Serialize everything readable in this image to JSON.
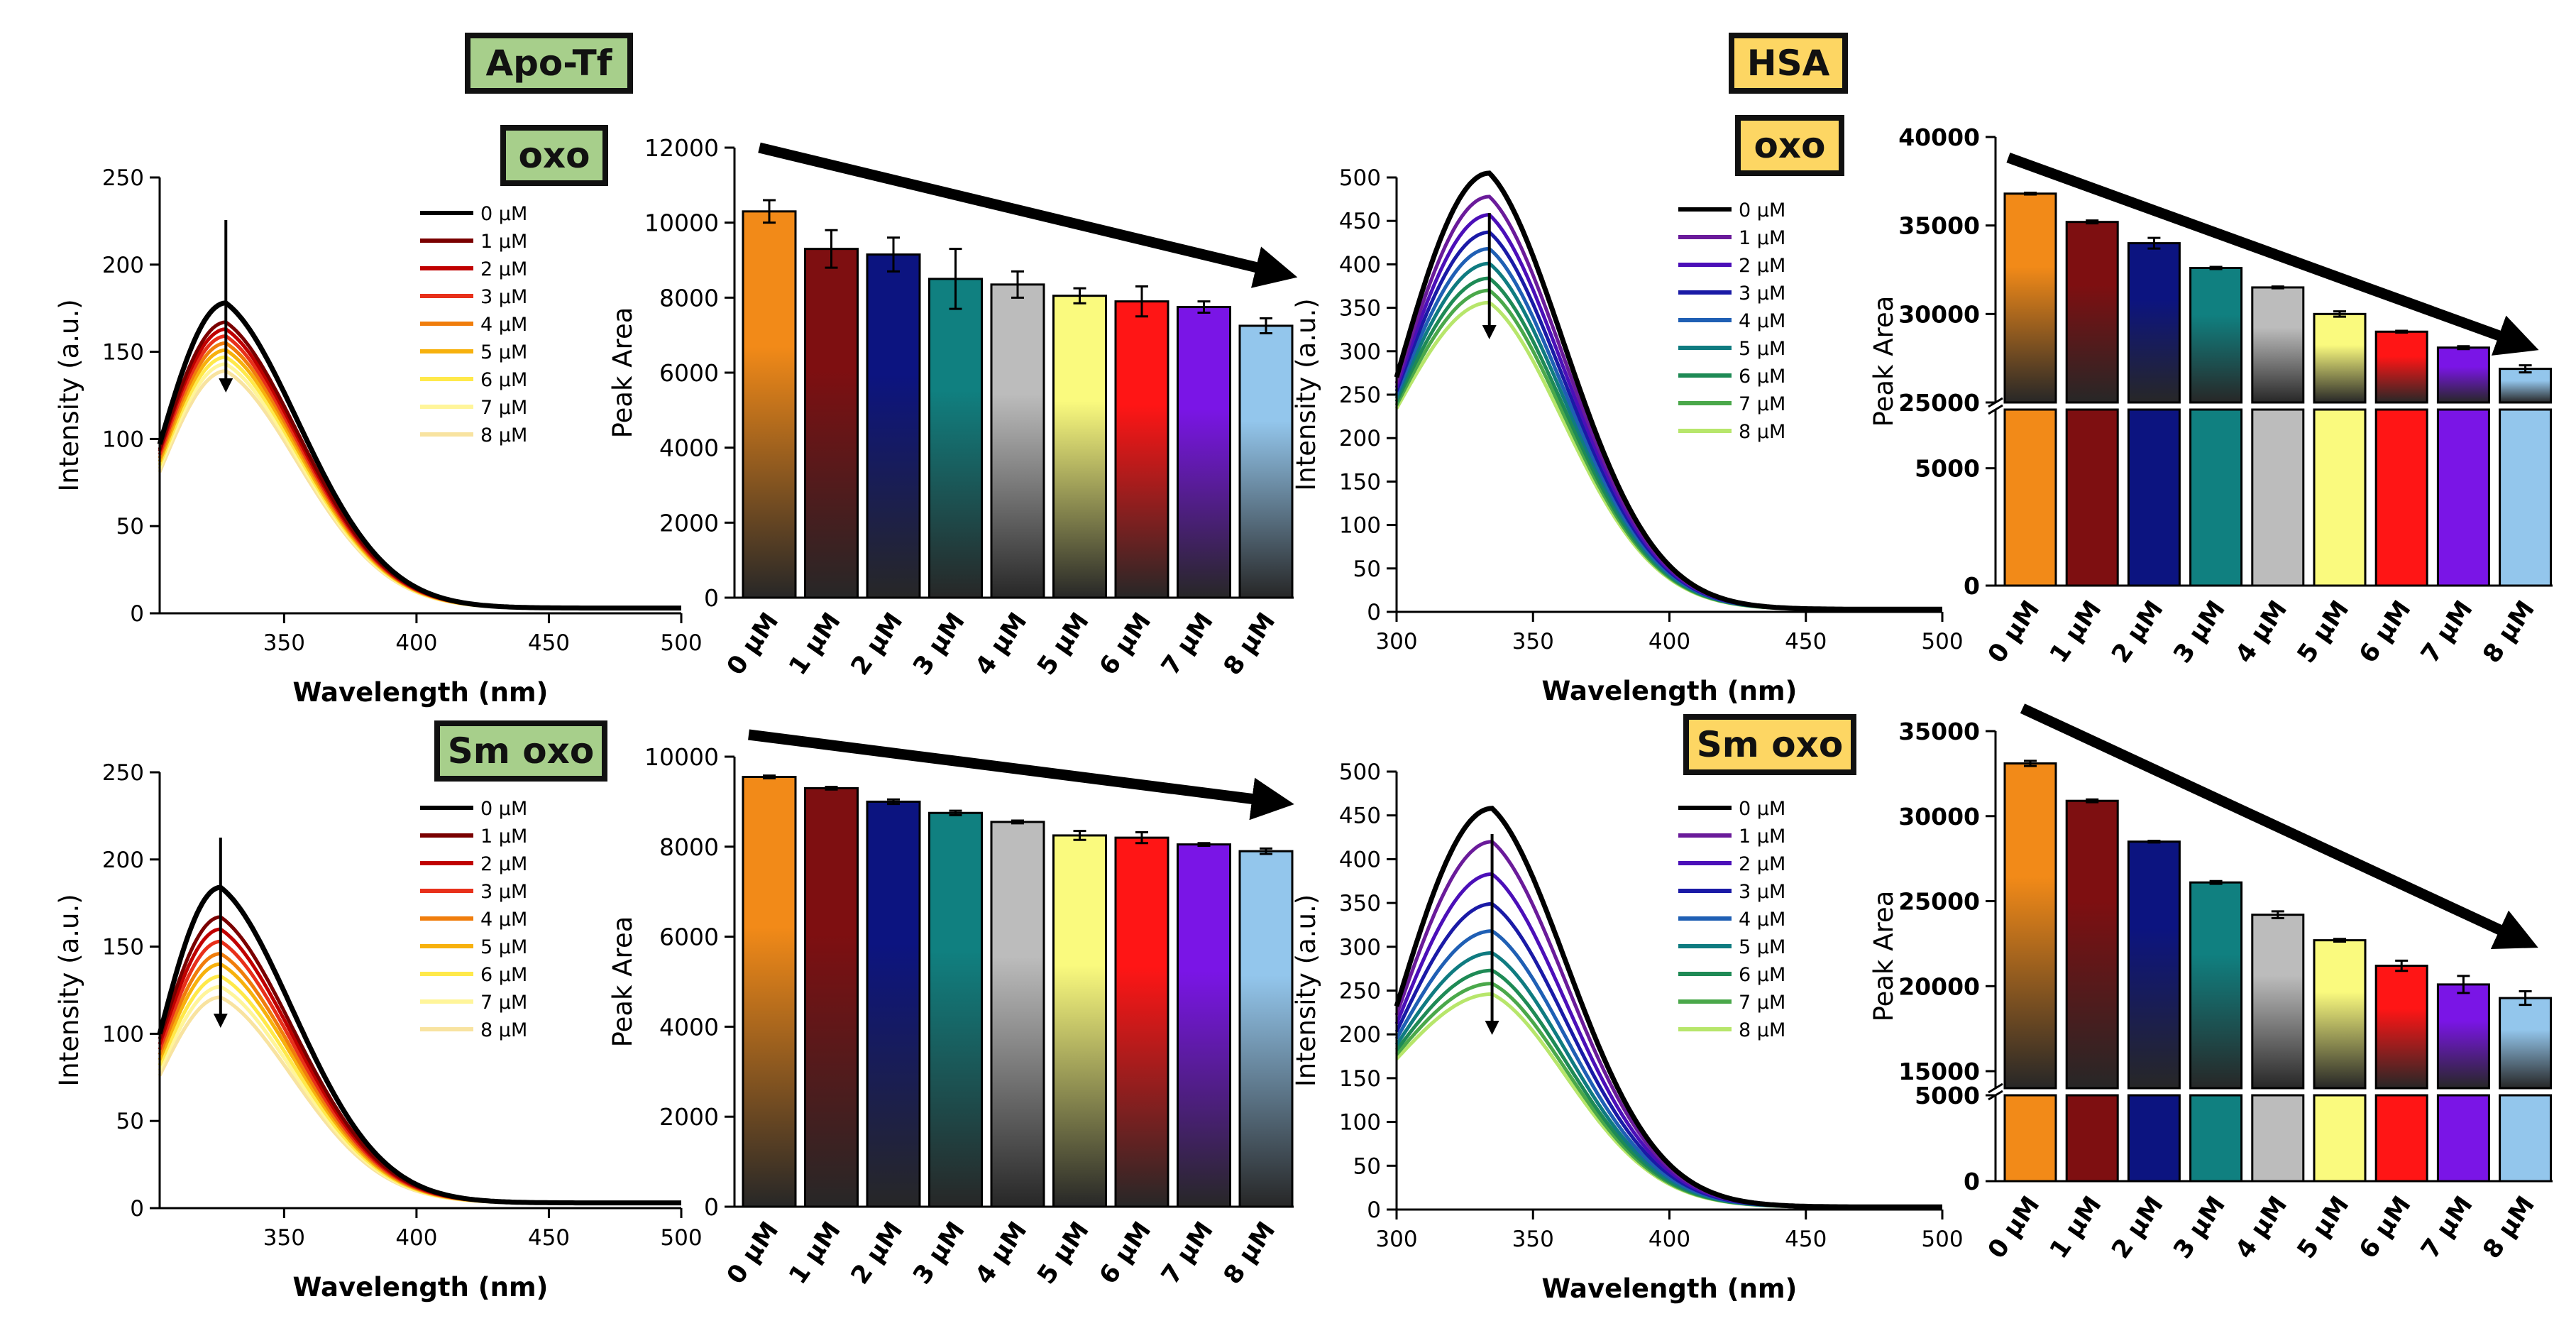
{
  "labels": {
    "apo_tf": "Apo-Tf",
    "oxo_left": "oxo",
    "sm_oxo_left": "Sm oxo",
    "hsa": "HSA",
    "oxo_right": "oxo",
    "sm_oxo_right": "Sm oxo"
  },
  "colors": {
    "apo_label_bg": "#a7cf8b",
    "hsa_label_bg": "#fdd663"
  },
  "chart_data": [
    {
      "id": "apo-tf-oxo-spectra",
      "type": "line",
      "xlabel": "Wavelength (nm)",
      "ylabel": "Intensity (a.u.)",
      "xlim": [
        303,
        500
      ],
      "ylim": [
        0,
        250
      ],
      "xticks": [
        350,
        400,
        450,
        500
      ],
      "yticks": [
        0,
        50,
        100,
        150,
        200,
        250
      ],
      "legend_position": "top-right",
      "peak_x": 328,
      "series": [
        {
          "name": "0 μM",
          "peak": 178,
          "start": 97,
          "color": "#000000"
        },
        {
          "name": "1 μM",
          "peak": 167,
          "start": 94,
          "color": "#7a0000"
        },
        {
          "name": "2 μM",
          "peak": 163,
          "start": 93,
          "color": "#c00000"
        },
        {
          "name": "3 μM",
          "peak": 159,
          "start": 91,
          "color": "#e8301a"
        },
        {
          "name": "4 μM",
          "peak": 155,
          "start": 89,
          "color": "#f07d0c"
        },
        {
          "name": "5 μM",
          "peak": 151,
          "start": 87,
          "color": "#f7b10d"
        },
        {
          "name": "6 μM",
          "peak": 147,
          "start": 85,
          "color": "#ffe94a"
        },
        {
          "name": "7 μM",
          "peak": 143,
          "start": 83,
          "color": "#fff59a"
        },
        {
          "name": "8 μM",
          "peak": 139,
          "start": 81,
          "color": "#f8e3a0"
        }
      ]
    },
    {
      "id": "apo-tf-oxo-bars",
      "type": "bar",
      "ylabel": "Peak Area",
      "categories": [
        "0 μM",
        "1 μM",
        "2 μM",
        "3 μM",
        "4 μM",
        "5 μM",
        "6 μM",
        "7 μM",
        "8 μM"
      ],
      "values": [
        10300,
        9300,
        9150,
        8500,
        8350,
        8050,
        7900,
        7750,
        7250
      ],
      "errors": [
        300,
        500,
        450,
        800,
        350,
        200,
        400,
        150,
        200
      ],
      "ylim": [
        0,
        12000
      ],
      "yticks": [
        0,
        2000,
        4000,
        6000,
        8000,
        10000,
        12000
      ],
      "trend": "decreasing"
    },
    {
      "id": "apo-tf-sm-oxo-spectra",
      "type": "line",
      "xlabel": "Wavelength (nm)",
      "ylabel": "Intensity (a.u.)",
      "xlim": [
        303,
        500
      ],
      "ylim": [
        0,
        250
      ],
      "xticks": [
        350,
        400,
        450,
        500
      ],
      "yticks": [
        0,
        50,
        100,
        150,
        200,
        250
      ],
      "legend_position": "top-right",
      "peak_x": 326,
      "series": [
        {
          "name": "0 μM",
          "peak": 184,
          "start": 100,
          "color": "#000000"
        },
        {
          "name": "1 μM",
          "peak": 167,
          "start": 97,
          "color": "#7a0000"
        },
        {
          "name": "2 μM",
          "peak": 160,
          "start": 94,
          "color": "#c00000"
        },
        {
          "name": "3 μM",
          "peak": 153,
          "start": 91,
          "color": "#e8301a"
        },
        {
          "name": "4 μM",
          "peak": 146,
          "start": 88,
          "color": "#f07d0c"
        },
        {
          "name": "5 μM",
          "peak": 140,
          "start": 85,
          "color": "#f7b10d"
        },
        {
          "name": "6 μM",
          "peak": 133,
          "start": 82,
          "color": "#ffe94a"
        },
        {
          "name": "7 μM",
          "peak": 127,
          "start": 79,
          "color": "#fff59a"
        },
        {
          "name": "8 μM",
          "peak": 121,
          "start": 76,
          "color": "#f8e3a0"
        }
      ]
    },
    {
      "id": "apo-tf-sm-oxo-bars",
      "type": "bar",
      "ylabel": "Peak Area",
      "categories": [
        "0 μM",
        "1 μM",
        "2 μM",
        "3 μM",
        "4 μM",
        "5 μM",
        "6 μM",
        "7 μM",
        "8 μM"
      ],
      "values": [
        9550,
        9300,
        9000,
        8750,
        8550,
        8250,
        8200,
        8050,
        7900
      ],
      "errors": [
        30,
        30,
        50,
        50,
        30,
        100,
        120,
        30,
        60
      ],
      "ylim": [
        0,
        10000
      ],
      "yticks": [
        0,
        2000,
        4000,
        6000,
        8000,
        10000
      ],
      "trend": "decreasing"
    },
    {
      "id": "hsa-oxo-spectra",
      "type": "line",
      "xlabel": "Wavelength (nm)",
      "ylabel": "Intensity (a.u.)",
      "xlim": [
        300,
        500
      ],
      "ylim": [
        0,
        500
      ],
      "xticks": [
        300,
        350,
        400,
        450,
        500
      ],
      "yticks": [
        0,
        50,
        100,
        150,
        200,
        250,
        300,
        350,
        400,
        450,
        500
      ],
      "legend_position": "top-right",
      "peak_x": 334,
      "series": [
        {
          "name": "0 μM",
          "peak": 505,
          "start": 270,
          "color": "#000000"
        },
        {
          "name": "1 μM",
          "peak": 478,
          "start": 263,
          "color": "#6a1b9a"
        },
        {
          "name": "2 μM",
          "peak": 457,
          "start": 258,
          "color": "#4b0fb8"
        },
        {
          "name": "3 μM",
          "peak": 437,
          "start": 254,
          "color": "#1a1aa6"
        },
        {
          "name": "4 μM",
          "peak": 418,
          "start": 250,
          "color": "#1f5fb4"
        },
        {
          "name": "5 μM",
          "peak": 401,
          "start": 246,
          "color": "#0f7b80"
        },
        {
          "name": "6 μM",
          "peak": 384,
          "start": 242,
          "color": "#1e8a55"
        },
        {
          "name": "7 μM",
          "peak": 370,
          "start": 238,
          "color": "#4aa84a"
        },
        {
          "name": "8 μM",
          "peak": 356,
          "start": 234,
          "color": "#b7e66b"
        }
      ]
    },
    {
      "id": "hsa-oxo-bars",
      "type": "bar",
      "ylabel": "Peak Area",
      "categories": [
        "0 μM",
        "1 μM",
        "2 μM",
        "3 μM",
        "4 μM",
        "5 μM",
        "6 μM",
        "7 μM",
        "8 μM"
      ],
      "values": [
        36800,
        35200,
        34000,
        32600,
        31500,
        30000,
        29000,
        28100,
        26900
      ],
      "errors": [
        50,
        80,
        300,
        60,
        50,
        150,
        50,
        80,
        200
      ],
      "axis_break": [
        7500,
        25000
      ],
      "ylim": [
        0,
        40000
      ],
      "yticks": [
        0,
        5000,
        25000,
        30000,
        35000,
        40000
      ],
      "trend": "decreasing"
    },
    {
      "id": "hsa-sm-oxo-spectra",
      "type": "line",
      "xlabel": "Wavelength (nm)",
      "ylabel": "Intensity (a.u.)",
      "xlim": [
        300,
        500
      ],
      "ylim": [
        0,
        500
      ],
      "xticks": [
        300,
        350,
        400,
        450,
        500
      ],
      "yticks": [
        0,
        50,
        100,
        150,
        200,
        250,
        300,
        350,
        400,
        450,
        500
      ],
      "legend_position": "top-right",
      "peak_x": 335,
      "series": [
        {
          "name": "0 μM",
          "peak": 458,
          "start": 232,
          "color": "#000000"
        },
        {
          "name": "1 μM",
          "peak": 420,
          "start": 222,
          "color": "#6a1b9a"
        },
        {
          "name": "2 μM",
          "peak": 383,
          "start": 212,
          "color": "#4b0fb8"
        },
        {
          "name": "3 μM",
          "peak": 349,
          "start": 203,
          "color": "#1a1aa6"
        },
        {
          "name": "4 μM",
          "peak": 318,
          "start": 195,
          "color": "#1f5fb4"
        },
        {
          "name": "5 μM",
          "peak": 293,
          "start": 188,
          "color": "#0f7b80"
        },
        {
          "name": "6 μM",
          "peak": 273,
          "start": 182,
          "color": "#1e8a55"
        },
        {
          "name": "7 μM",
          "peak": 258,
          "start": 177,
          "color": "#4aa84a"
        },
        {
          "name": "8 μM",
          "peak": 246,
          "start": 172,
          "color": "#b7e66b"
        }
      ]
    },
    {
      "id": "hsa-sm-oxo-bars",
      "type": "bar",
      "ylabel": "Peak Area",
      "categories": [
        "0 μM",
        "1 μM",
        "2 μM",
        "3 μM",
        "4 μM",
        "5 μM",
        "6 μM",
        "7 μM",
        "8 μM"
      ],
      "values": [
        33100,
        30900,
        28500,
        26100,
        24200,
        22700,
        21200,
        20100,
        19300
      ],
      "errors": [
        150,
        80,
        50,
        80,
        200,
        80,
        300,
        500,
        400
      ],
      "axis_break": [
        5000,
        14000
      ],
      "ylim": [
        0,
        35000
      ],
      "yticks": [
        0,
        5000,
        15000,
        20000,
        25000,
        30000,
        35000
      ],
      "trend": "decreasing"
    }
  ]
}
